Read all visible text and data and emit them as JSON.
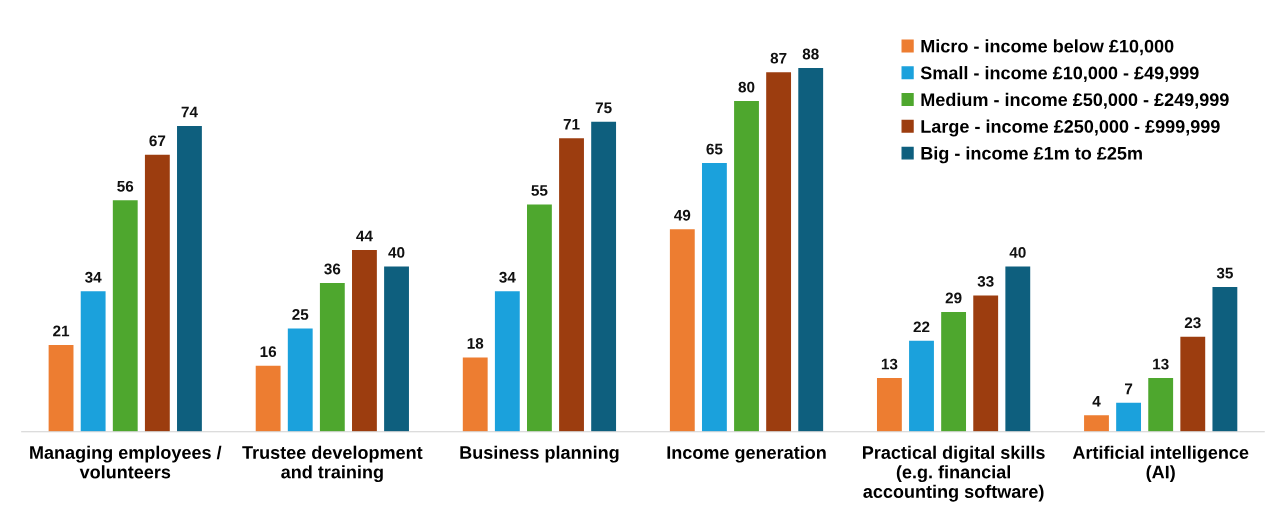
{
  "chart_data": {
    "type": "bar",
    "categories": [
      "Managing employees /\nvolunteers",
      "Trustee development\nand training",
      "Business planning",
      "Income generation",
      "Practical digital skills\n(e.g. financial\naccounting software)",
      "Artificial intelligence\n(AI)"
    ],
    "series": [
      {
        "name": "Micro - income below £10,000",
        "color": "#ed7d31",
        "values": [
          21,
          16,
          18,
          49,
          13,
          4
        ]
      },
      {
        "name": "Small - income £10,000 - £49,999",
        "color": "#1ba1dc",
        "values": [
          34,
          25,
          34,
          65,
          22,
          7
        ]
      },
      {
        "name": "Medium - income £50,000 - £249,999",
        "color": "#4ea72e",
        "values": [
          56,
          36,
          55,
          80,
          29,
          13
        ]
      },
      {
        "name": "Large - income £250,000 - £999,999",
        "color": "#9c3d0f",
        "values": [
          67,
          44,
          71,
          87,
          33,
          23
        ]
      },
      {
        "name": "Big - income £1m to £25m",
        "color": "#0e5f7e",
        "values": [
          74,
          40,
          75,
          88,
          40,
          35
        ]
      }
    ],
    "data_labels": true,
    "legend": "top right",
    "grid": false,
    "tick_labels": "x"
  }
}
